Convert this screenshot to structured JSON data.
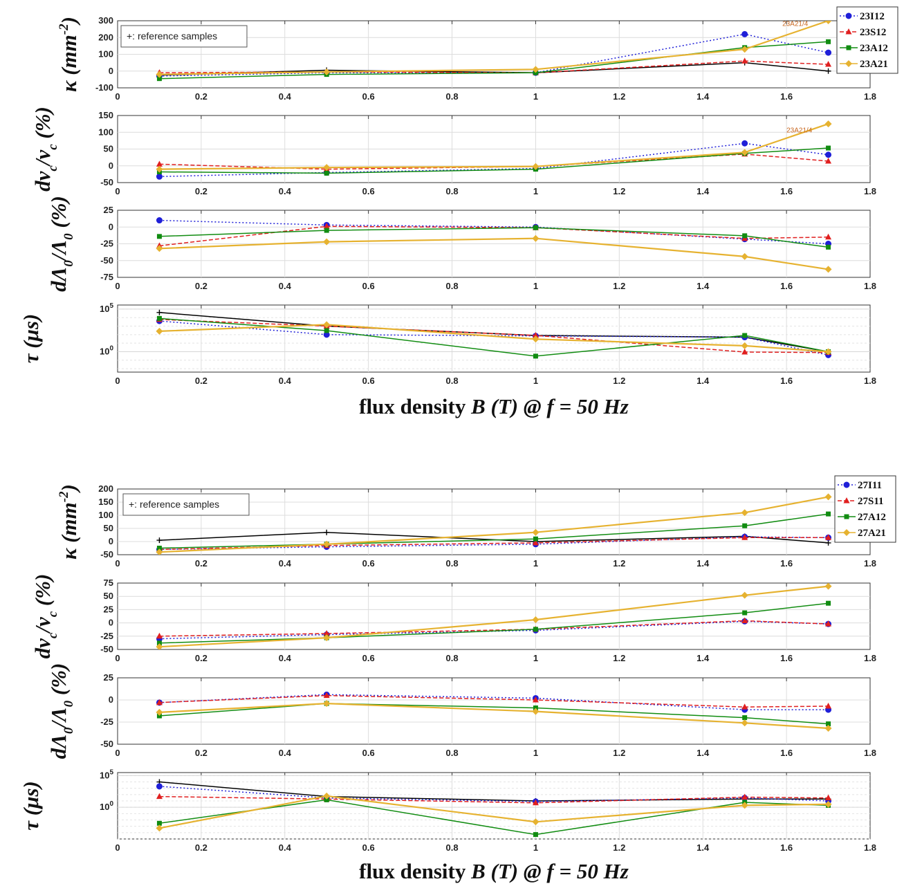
{
  "chart_data": [
    {
      "group": "top",
      "xticks": [
        "0",
        "0.2",
        "0.4",
        "0.6",
        "0.8",
        "1",
        "1.2",
        "1.4",
        "1.6",
        "1.8"
      ],
      "xlim": [
        0,
        1.8
      ],
      "xlabel": {
        "pre": "flux density ",
        "b": "B",
        "t": " (T) @ ",
        "f": "f",
        "post": " = 50 Hz"
      },
      "legend": [
        "23I12",
        "23S12",
        "23A12",
        "23A21"
      ],
      "reference_note": "+: reference samples",
      "panels": [
        {
          "id": "kappa",
          "type": "line",
          "ylabel_main": "κ (mm",
          "ylabel_sup": "-2",
          "ylabel_end": ")",
          "ylim": [
            -100,
            300
          ],
          "yticks": [
            "-100",
            "0",
            "100",
            "200",
            "300"
          ],
          "ytick_values": [
            -100,
            0,
            100,
            200,
            300
          ],
          "annotation": "23A21/4",
          "annotation_at": [
            1.59,
            270
          ],
          "series": [
            {
              "name": "23I12",
              "x": [
                0.1,
                0.5,
                1,
                1.5,
                1.7
              ],
              "y": [
                -30,
                -10,
                -10,
                220,
                110
              ]
            },
            {
              "name": "23S12",
              "x": [
                0.1,
                0.5,
                1,
                1.5,
                1.7
              ],
              "y": [
                -10,
                -5,
                -10,
                60,
                40
              ]
            },
            {
              "name": "23A12",
              "x": [
                0.1,
                0.5,
                1,
                1.5,
                1.7
              ],
              "y": [
                -45,
                -20,
                -10,
                140,
                175
              ]
            },
            {
              "name": "23A21",
              "x": [
                0.1,
                0.5,
                1,
                1.5,
                1.7
              ],
              "y": [
                -20,
                -5,
                10,
                130,
                300
              ]
            },
            {
              "name": "+: reference samples",
              "x": [
                0.1,
                0.5,
                1,
                1.5,
                1.7
              ],
              "y": [
                -25,
                5,
                -10,
                50,
                0
              ]
            }
          ]
        },
        {
          "id": "dnu",
          "type": "line",
          "ylabel_main": "dν",
          "ylabel_sub1": "c",
          "ylabel_mid": "/ν",
          "ylabel_sub2": "c",
          "ylabel_end": " (%)",
          "ylim": [
            -50,
            150
          ],
          "yticks": [
            "-50",
            "0",
            "50",
            "100",
            "150"
          ],
          "ytick_values": [
            -50,
            0,
            50,
            100,
            150
          ],
          "annotation": "23A21/4",
          "annotation_at": [
            1.6,
            100
          ],
          "series": [
            {
              "name": "23I12",
              "x": [
                0.1,
                0.5,
                1,
                1.5,
                1.7
              ],
              "y": [
                -32,
                -20,
                -8,
                67,
                33
              ]
            },
            {
              "name": "23S12",
              "x": [
                0.1,
                0.5,
                1,
                1.5,
                1.7
              ],
              "y": [
                5,
                -10,
                -2,
                35,
                14
              ]
            },
            {
              "name": "23A12",
              "x": [
                0.1,
                0.5,
                1,
                1.5,
                1.7
              ],
              "y": [
                -18,
                -22,
                -10,
                37,
                53
              ]
            },
            {
              "name": "23A21",
              "x": [
                0.1,
                0.5,
                1,
                1.5,
                1.7
              ],
              "y": [
                -10,
                -5,
                -2,
                40,
                125
              ]
            }
          ]
        },
        {
          "id": "dlambda",
          "type": "line",
          "ylabel_main": "dΛ",
          "ylabel_sub1": "0",
          "ylabel_mid": "/Λ",
          "ylabel_sub2": "0",
          "ylabel_end": " (%)",
          "ylim": [
            -75,
            25
          ],
          "yticks": [
            "-75",
            "-50",
            "-25",
            "0",
            "25"
          ],
          "ytick_values": [
            -75,
            -50,
            -25,
            0,
            25
          ],
          "series": [
            {
              "name": "23I12",
              "x": [
                0.1,
                0.5,
                1,
                1.5,
                1.7
              ],
              "y": [
                10,
                3,
                0,
                -18,
                -25
              ]
            },
            {
              "name": "23S12",
              "x": [
                0.1,
                0.5,
                1,
                1.5,
                1.7
              ],
              "y": [
                -28,
                1,
                -1,
                -17,
                -15
              ]
            },
            {
              "name": "23A12",
              "x": [
                0.1,
                0.5,
                1,
                1.5,
                1.7
              ],
              "y": [
                -14,
                -5,
                -1,
                -13,
                -30
              ]
            },
            {
              "name": "23A21",
              "x": [
                0.1,
                0.5,
                1,
                1.5,
                1.7
              ],
              "y": [
                -32,
                -22,
                -17,
                -44,
                -63
              ]
            }
          ]
        },
        {
          "id": "tau",
          "type": "line",
          "yscale": "log",
          "ylabel_main": "τ (μs)",
          "ylim": [
            0.004,
            300000
          ],
          "ytick_labels": [
            {
              "base": "10",
              "exp": "5",
              "value": 100000
            },
            {
              "base": "10",
              "exp": "0",
              "value": 1
            }
          ],
          "series": [
            {
              "name": "23I12",
              "x": [
                0.1,
                0.5,
                1,
                1.5,
                1.7
              ],
              "y": [
                4000,
                100,
                70,
                50,
                0.4
              ]
            },
            {
              "name": "23S12",
              "x": [
                0.1,
                0.5,
                1,
                1.5,
                1.7
              ],
              "y": [
                6000,
                1000,
                80,
                0.9,
                0.8
              ]
            },
            {
              "name": "23A12",
              "x": [
                0.1,
                0.5,
                1,
                1.5,
                1.7
              ],
              "y": [
                8000,
                300,
                0.3,
                80,
                1
              ]
            },
            {
              "name": "23A21",
              "x": [
                0.1,
                0.5,
                1,
                1.5,
                1.7
              ],
              "y": [
                250,
                1500,
                30,
                5,
                1
              ]
            },
            {
              "name": "+: reference samples",
              "x": [
                0.1,
                0.5,
                1,
                1.5,
                1.7
              ],
              "y": [
                40000,
                1000,
                80,
                50,
                1
              ]
            }
          ]
        }
      ]
    },
    {
      "group": "bottom",
      "xticks": [
        "0",
        "0.2",
        "0.4",
        "0.6",
        "0.8",
        "1",
        "1.2",
        "1.4",
        "1.6",
        "1.8"
      ],
      "xlim": [
        0,
        1.8
      ],
      "xlabel": {
        "pre": "flux density ",
        "b": "B",
        "t": " (T) @ ",
        "f": "f",
        "post": " = 50 Hz"
      },
      "legend": [
        "27I11",
        "27S11",
        "27A12",
        "27A21"
      ],
      "reference_note": "+: reference samples",
      "panels": [
        {
          "id": "kappa",
          "type": "line",
          "ylabel_main": "κ (mm",
          "ylabel_sup": "-2",
          "ylabel_end": ")",
          "ylim": [
            -50,
            200
          ],
          "yticks": [
            "-50",
            "0",
            "50",
            "100",
            "150",
            "200"
          ],
          "ytick_values": [
            -50,
            0,
            50,
            100,
            150,
            200
          ],
          "series": [
            {
              "name": "27I11",
              "x": [
                0.1,
                0.5,
                1,
                1.5,
                1.7
              ],
              "y": [
                -30,
                -20,
                -10,
                18,
                15
              ]
            },
            {
              "name": "27S11",
              "x": [
                0.1,
                0.5,
                1,
                1.5,
                1.7
              ],
              "y": [
                -30,
                -15,
                -5,
                15,
                15
              ]
            },
            {
              "name": "27A12",
              "x": [
                0.1,
                0.5,
                1,
                1.5,
                1.7
              ],
              "y": [
                -25,
                -10,
                10,
                60,
                105
              ]
            },
            {
              "name": "27A21",
              "x": [
                0.1,
                0.5,
                1,
                1.5,
                1.7
              ],
              "y": [
                -40,
                -10,
                35,
                110,
                170
              ]
            },
            {
              "name": "+: reference samples",
              "x": [
                0.1,
                0.5,
                1,
                1.5,
                1.7
              ],
              "y": [
                5,
                35,
                0,
                20,
                -5
              ]
            }
          ]
        },
        {
          "id": "dnu",
          "type": "line",
          "ylabel_main": "dν",
          "ylabel_sub1": "c",
          "ylabel_mid": "/ν",
          "ylabel_sub2": "c",
          "ylabel_end": " (%)",
          "ylim": [
            -50,
            75
          ],
          "yticks": [
            "-50",
            "-25",
            "0",
            "25",
            "50",
            "75"
          ],
          "ytick_values": [
            -50,
            -25,
            0,
            25,
            50,
            75
          ],
          "series": [
            {
              "name": "27I11",
              "x": [
                0.1,
                0.5,
                1,
                1.5,
                1.7
              ],
              "y": [
                -30,
                -22,
                -14,
                3,
                -2
              ]
            },
            {
              "name": "27S11",
              "x": [
                0.1,
                0.5,
                1,
                1.5,
                1.7
              ],
              "y": [
                -25,
                -20,
                -12,
                4,
                -2
              ]
            },
            {
              "name": "27A12",
              "x": [
                0.1,
                0.5,
                1,
                1.5,
                1.7
              ],
              "y": [
                -38,
                -28,
                -12,
                19,
                37
              ]
            },
            {
              "name": "27A21",
              "x": [
                0.1,
                0.5,
                1,
                1.5,
                1.7
              ],
              "y": [
                -45,
                -28,
                6,
                52,
                69
              ]
            }
          ]
        },
        {
          "id": "dlambda",
          "type": "line",
          "ylabel_main": "dΛ",
          "ylabel_sub1": "0",
          "ylabel_mid": "/Λ",
          "ylabel_sub2": "0",
          "ylabel_end": " (%)",
          "ylim": [
            -50,
            25
          ],
          "yticks": [
            "-50",
            "-25",
            "0",
            "25"
          ],
          "ytick_values": [
            -50,
            -25,
            0,
            25
          ],
          "series": [
            {
              "name": "27I11",
              "x": [
                0.1,
                0.5,
                1,
                1.5,
                1.7
              ],
              "y": [
                -3,
                6,
                2,
                -11,
                -11
              ]
            },
            {
              "name": "27S11",
              "x": [
                0.1,
                0.5,
                1,
                1.5,
                1.7
              ],
              "y": [
                -3,
                5,
                0,
                -8,
                -7
              ]
            },
            {
              "name": "27A12",
              "x": [
                0.1,
                0.5,
                1,
                1.5,
                1.7
              ],
              "y": [
                -18,
                -4,
                -9,
                -20,
                -27
              ]
            },
            {
              "name": "27A21",
              "x": [
                0.1,
                0.5,
                1,
                1.5,
                1.7
              ],
              "y": [
                -14,
                -4,
                -13,
                -26,
                -32
              ]
            }
          ]
        },
        {
          "id": "tau",
          "type": "line",
          "yscale": "log",
          "ylabel_main": "τ (μs)",
          "ylim": [
            1e-05,
            300000
          ],
          "ytick_labels": [
            {
              "base": "10",
              "exp": "5",
              "value": 100000
            },
            {
              "base": "10",
              "exp": "0",
              "value": 1
            }
          ],
          "series": [
            {
              "name": "27I11",
              "x": [
                0.1,
                0.5,
                1,
                1.5,
                1.7
              ],
              "y": [
                2000,
                30,
                8,
                30,
                10
              ]
            },
            {
              "name": "27S11",
              "x": [
                0.1,
                0.5,
                1,
                1.5,
                1.7
              ],
              "y": [
                50,
                20,
                5,
                40,
                30
              ]
            },
            {
              "name": "27A12",
              "x": [
                0.1,
                0.5,
                1,
                1.5,
                1.7
              ],
              "y": [
                0.003,
                15,
                5e-05,
                6,
                2
              ]
            },
            {
              "name": "27A21",
              "x": [
                0.1,
                0.5,
                1,
                1.5,
                1.7
              ],
              "y": [
                0.0005,
                60,
                0.005,
                2,
                3
              ]
            },
            {
              "name": "+: reference samples",
              "x": [
                0.1,
                0.5,
                1,
                1.5,
                1.7
              ],
              "y": [
                10000,
                50,
                10,
                20,
                20
              ]
            }
          ]
        }
      ]
    }
  ],
  "series_styles": {
    "23I12": {
      "color": "#1f1fd8",
      "dash": "2,3",
      "marker": "circle"
    },
    "23S12": {
      "color": "#e01f1f",
      "dash": "6,3",
      "marker": "triangle"
    },
    "23A12": {
      "color": "#118c11",
      "dash": "",
      "marker": "square"
    },
    "23A21": {
      "color": "#e6b230",
      "dash": "",
      "marker": "diamond"
    },
    "27I11": {
      "color": "#1f1fd8",
      "dash": "2,3",
      "marker": "circle"
    },
    "27S11": {
      "color": "#e01f1f",
      "dash": "6,3",
      "marker": "triangle"
    },
    "27A12": {
      "color": "#118c11",
      "dash": "",
      "marker": "square"
    },
    "27A21": {
      "color": "#e6b230",
      "dash": "",
      "marker": "diamond"
    },
    "+: reference samples": {
      "color": "#000000",
      "dash": "",
      "marker": "plus"
    }
  }
}
